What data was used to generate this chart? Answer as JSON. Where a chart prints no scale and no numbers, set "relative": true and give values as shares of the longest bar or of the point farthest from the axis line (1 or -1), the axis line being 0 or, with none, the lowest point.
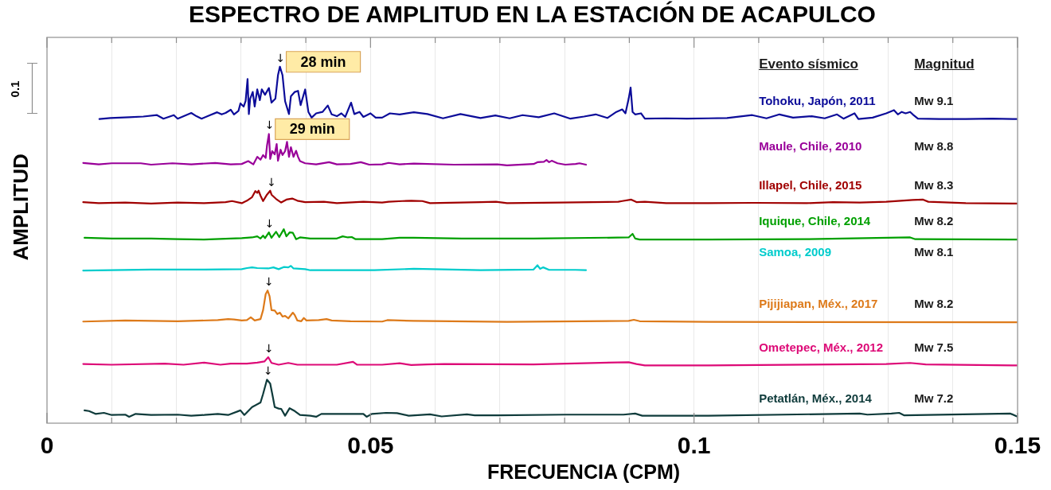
{
  "chart_data": {
    "type": "line",
    "relative": true,
    "title": "ESPECTRO DE AMPLITUD EN LA ESTACIÓN DE ACAPULCO",
    "xlabel": "FRECUENCIA (CPM)",
    "ylabel": "AMPLITUD",
    "xlim": [
      0,
      0.15
    ],
    "xticks": [
      0,
      {
        "value": 0.01,
        "label": null
      },
      {
        "value": 0.02,
        "label": null
      },
      {
        "value": 0.03,
        "label": null
      },
      {
        "value": 0.04,
        "label": null
      },
      0.05,
      {
        "value": 0.06,
        "label": null
      },
      {
        "value": 0.07,
        "label": null
      },
      {
        "value": 0.08,
        "label": null
      },
      {
        "value": 0.09,
        "label": null
      },
      0.1,
      {
        "value": 0.11,
        "label": null
      },
      {
        "value": 0.12,
        "label": null
      },
      {
        "value": 0.13,
        "label": null
      },
      {
        "value": 0.14,
        "label": null
      },
      0.15
    ],
    "grid": "x",
    "marker": "none",
    "line_style": "solid",
    "annotations": [
      "Evento sísmico",
      "Magnitud",
      "Mw 9.1",
      "Mw 8.8",
      "Mw 8.3",
      "Mw 8.2",
      "Mw 8.1",
      "Mw 8.2",
      "Mw 7.5",
      "Mw 7.2",
      "0.1",
      {
        "text": "↓",
        "x": 0.0361,
        "y": 1.0
      },
      {
        "text": "28 min",
        "x": 0.036,
        "y": 1.0
      },
      {
        "text": "↓",
        "x": 0.0344,
        "y": 0.811
      },
      {
        "text": "29 min",
        "x": 0.0343,
        "y": 0.811
      },
      {
        "text": "↓",
        "x": 0.0347,
        "y": 0.652
      },
      {
        "text": "↓",
        "x": 0.0344,
        "y": 0.535
      },
      {
        "text": "↓",
        "x": 0.0343,
        "y": 0.372
      },
      {
        "text": "↓",
        "x": 0.0343,
        "y": 0.185
      },
      {
        "text": "↓",
        "x": 0.0342,
        "y": 0.122
      }
    ],
    "series": [
      {
        "name": "Tohoku, Japón, 2011",
        "color": "#0c0c99",
        "x": [
          0.0081,
          0.0098,
          0.0127,
          0.0149,
          0.017,
          0.018,
          0.0196,
          0.0202,
          0.0223,
          0.0231,
          0.0239,
          0.0252,
          0.0263,
          0.027,
          0.0276,
          0.0284,
          0.0289,
          0.0296,
          0.0299,
          0.0304,
          0.0307,
          0.031,
          0.0312,
          0.0314,
          0.0318,
          0.0321,
          0.0325,
          0.0329,
          0.0332,
          0.0337,
          0.0343,
          0.0347,
          0.0353,
          0.0357,
          0.036,
          0.0364,
          0.0368,
          0.0374,
          0.0377,
          0.0383,
          0.0388,
          0.0392,
          0.0399,
          0.0404,
          0.0409,
          0.0416,
          0.0426,
          0.0434,
          0.044,
          0.0448,
          0.0455,
          0.0461,
          0.047,
          0.0475,
          0.0483,
          0.0489,
          0.05,
          0.0508,
          0.0518,
          0.053,
          0.0545,
          0.0567,
          0.0588,
          0.0612,
          0.0639,
          0.067,
          0.0693,
          0.0715,
          0.0735,
          0.076,
          0.0784,
          0.0809,
          0.083,
          0.0848,
          0.0866,
          0.088,
          0.0889,
          0.0894,
          0.0899,
          0.0902,
          0.0905,
          0.0909,
          0.0918,
          0.0924,
          0.0957,
          0.0989,
          0.1022,
          0.1051,
          0.109,
          0.1112,
          0.1132,
          0.1153,
          0.1182,
          0.1202,
          0.1221,
          0.1231,
          0.1248,
          0.1254,
          0.1276,
          0.1297,
          0.1309,
          0.1315,
          0.1321,
          0.1327,
          0.1334,
          0.1338,
          0.1346,
          0.1379,
          0.142,
          0.1461,
          0.1499
        ],
        "values": [
          0.853,
          0.856,
          0.858,
          0.86,
          0.864,
          0.854,
          0.864,
          0.854,
          0.87,
          0.861,
          0.854,
          0.864,
          0.872,
          0.866,
          0.87,
          0.879,
          0.866,
          0.876,
          0.897,
          0.888,
          0.904,
          0.965,
          0.867,
          0.91,
          0.929,
          0.888,
          0.936,
          0.906,
          0.936,
          0.921,
          0.94,
          0.899,
          0.91,
          0.976,
          1.0,
          0.976,
          0.903,
          0.867,
          0.917,
          0.929,
          0.932,
          0.892,
          0.936,
          0.873,
          0.857,
          0.869,
          0.873,
          0.891,
          0.866,
          0.861,
          0.869,
          0.859,
          0.899,
          0.867,
          0.873,
          0.859,
          0.869,
          0.857,
          0.857,
          0.869,
          0.866,
          0.872,
          0.867,
          0.855,
          0.867,
          0.856,
          0.863,
          0.855,
          0.864,
          0.858,
          0.869,
          0.854,
          0.86,
          0.866,
          0.856,
          0.873,
          0.88,
          0.869,
          0.91,
          0.941,
          0.873,
          0.866,
          0.869,
          0.854,
          0.855,
          0.854,
          0.855,
          0.856,
          0.864,
          0.855,
          0.866,
          0.857,
          0.861,
          0.855,
          0.866,
          0.854,
          0.869,
          0.853,
          0.857,
          0.869,
          0.878,
          0.866,
          0.873,
          0.869,
          0.873,
          0.866,
          0.854,
          0.853,
          0.853,
          0.854,
          0.853
        ]
      },
      {
        "name": "Maule, Chile, 2010",
        "color": "#990099",
        "x": [
          0.0056,
          0.008,
          0.01,
          0.0145,
          0.0161,
          0.0194,
          0.0223,
          0.026,
          0.0284,
          0.0301,
          0.0311,
          0.0319,
          0.0325,
          0.033,
          0.0334,
          0.0338,
          0.034,
          0.0343,
          0.0345,
          0.0348,
          0.0352,
          0.0355,
          0.0357,
          0.0361,
          0.0364,
          0.0368,
          0.0371,
          0.0374,
          0.0377,
          0.0381,
          0.0385,
          0.0388,
          0.0391,
          0.0399,
          0.0416,
          0.0436,
          0.0448,
          0.0469,
          0.0485,
          0.0498,
          0.0518,
          0.0528,
          0.0545,
          0.0567,
          0.0629,
          0.0696,
          0.0711,
          0.0752,
          0.0758,
          0.0768,
          0.0772,
          0.0776,
          0.078,
          0.0789,
          0.0801,
          0.0817,
          0.0823,
          0.0833
        ],
        "values": [
          0.73,
          0.726,
          0.729,
          0.729,
          0.725,
          0.729,
          0.726,
          0.73,
          0.726,
          0.727,
          0.735,
          0.726,
          0.747,
          0.739,
          0.752,
          0.744,
          0.778,
          0.811,
          0.741,
          0.763,
          0.754,
          0.783,
          0.736,
          0.767,
          0.752,
          0.763,
          0.789,
          0.747,
          0.774,
          0.747,
          0.764,
          0.747,
          0.735,
          0.729,
          0.726,
          0.732,
          0.726,
          0.727,
          0.732,
          0.725,
          0.726,
          0.73,
          0.726,
          0.728,
          0.725,
          0.726,
          0.723,
          0.727,
          0.732,
          0.733,
          0.738,
          0.732,
          0.736,
          0.729,
          0.725,
          0.727,
          0.729,
          0.725
        ]
      },
      {
        "name": "Illapel, Chile, 2015",
        "color": "#a00000",
        "x": [
          0.0056,
          0.008,
          0.0121,
          0.0161,
          0.0202,
          0.0243,
          0.0276,
          0.0286,
          0.0301,
          0.0309,
          0.0317,
          0.0322,
          0.0325,
          0.0327,
          0.033,
          0.0334,
          0.034,
          0.0345,
          0.0347,
          0.0354,
          0.0362,
          0.037,
          0.0379,
          0.0387,
          0.0399,
          0.0428,
          0.0448,
          0.0489,
          0.0518,
          0.0528,
          0.0549,
          0.0563,
          0.058,
          0.0592,
          0.067,
          0.0694,
          0.0711,
          0.0793,
          0.0883,
          0.0889,
          0.0903,
          0.0911,
          0.0924,
          0.0957,
          0.1022,
          0.1092,
          0.1174,
          0.1215,
          0.1256,
          0.1297,
          0.1338,
          0.1354,
          0.1362,
          0.1379,
          0.142,
          0.1499
        ],
        "values": [
          0.62,
          0.617,
          0.619,
          0.616,
          0.619,
          0.617,
          0.62,
          0.623,
          0.617,
          0.624,
          0.634,
          0.651,
          0.646,
          0.652,
          0.638,
          0.623,
          0.641,
          0.652,
          0.641,
          0.629,
          0.619,
          0.627,
          0.63,
          0.624,
          0.62,
          0.621,
          0.617,
          0.621,
          0.619,
          0.621,
          0.623,
          0.624,
          0.623,
          0.617,
          0.62,
          0.621,
          0.617,
          0.619,
          0.621,
          0.623,
          0.627,
          0.62,
          0.621,
          0.617,
          0.617,
          0.618,
          0.617,
          0.62,
          0.619,
          0.621,
          0.626,
          0.627,
          0.621,
          0.62,
          0.617,
          0.616
        ]
      },
      {
        "name": "Iquique, Chile, 2014",
        "color": "#00a000",
        "x": [
          0.0058,
          0.01,
          0.0161,
          0.0202,
          0.0243,
          0.0284,
          0.0301,
          0.0317,
          0.0325,
          0.033,
          0.0334,
          0.0337,
          0.0343,
          0.0347,
          0.0354,
          0.0359,
          0.0366,
          0.037,
          0.0375,
          0.038,
          0.0385,
          0.0391,
          0.0407,
          0.0448,
          0.0457,
          0.0465,
          0.0471,
          0.0477,
          0.0518,
          0.0545,
          0.0567,
          0.0641,
          0.0752,
          0.0899,
          0.0905,
          0.0909,
          0.0916,
          0.1022,
          0.1174,
          0.1334,
          0.1342,
          0.1499
        ],
        "values": [
          0.52,
          0.518,
          0.518,
          0.516,
          0.515,
          0.518,
          0.519,
          0.521,
          0.524,
          0.518,
          0.526,
          0.519,
          0.535,
          0.52,
          0.537,
          0.522,
          0.544,
          0.524,
          0.535,
          0.534,
          0.516,
          0.521,
          0.518,
          0.518,
          0.524,
          0.521,
          0.522,
          0.516,
          0.516,
          0.52,
          0.52,
          0.518,
          0.518,
          0.521,
          0.531,
          0.518,
          0.515,
          0.515,
          0.516,
          0.521,
          0.516,
          0.515
        ]
      },
      {
        "name": "Samoa, 2009",
        "color": "#00cccc",
        "x": [
          0.0056,
          0.0161,
          0.0243,
          0.0301,
          0.0309,
          0.0317,
          0.0325,
          0.0342,
          0.035,
          0.0358,
          0.0366,
          0.0373,
          0.0377,
          0.0381,
          0.0399,
          0.0407,
          0.0506,
          0.0567,
          0.067,
          0.0752,
          0.0758,
          0.0762,
          0.0767,
          0.0776,
          0.0817,
          0.0833
        ],
        "values": [
          0.428,
          0.431,
          0.431,
          0.432,
          0.435,
          0.437,
          0.435,
          0.434,
          0.437,
          0.432,
          0.438,
          0.437,
          0.441,
          0.434,
          0.432,
          0.429,
          0.429,
          0.433,
          0.429,
          0.431,
          0.443,
          0.433,
          0.437,
          0.43,
          0.43,
          0.429
        ]
      },
      {
        "name": "Pijijiapan, Méx., 2017",
        "color": "#dd7a1a",
        "x": [
          0.0056,
          0.0121,
          0.0202,
          0.0264,
          0.028,
          0.0289,
          0.0301,
          0.0309,
          0.0315,
          0.0321,
          0.033,
          0.0334,
          0.0338,
          0.0341,
          0.0344,
          0.0347,
          0.0352,
          0.0356,
          0.036,
          0.0364,
          0.0368,
          0.0373,
          0.038,
          0.0383,
          0.0387,
          0.0393,
          0.0397,
          0.0401,
          0.042,
          0.0432,
          0.044,
          0.0469,
          0.0518,
          0.0526,
          0.0567,
          0.0711,
          0.0899,
          0.0907,
          0.0916,
          0.1022,
          0.1499
        ],
        "values": [
          0.285,
          0.288,
          0.286,
          0.289,
          0.292,
          0.291,
          0.288,
          0.289,
          0.297,
          0.288,
          0.292,
          0.317,
          0.362,
          0.372,
          0.356,
          0.317,
          0.316,
          0.306,
          0.31,
          0.299,
          0.301,
          0.294,
          0.31,
          0.303,
          0.288,
          0.286,
          0.295,
          0.288,
          0.289,
          0.292,
          0.288,
          0.286,
          0.285,
          0.289,
          0.287,
          0.284,
          0.287,
          0.29,
          0.286,
          0.284,
          0.283
        ]
      },
      {
        "name": "Ometepec, Méx., 2012",
        "color": "#dd0a77",
        "x": [
          0.0056,
          0.01,
          0.0182,
          0.0211,
          0.0243,
          0.0268,
          0.0284,
          0.0309,
          0.0325,
          0.0336,
          0.0342,
          0.0347,
          0.0358,
          0.0373,
          0.0387,
          0.0407,
          0.0448,
          0.0473,
          0.0479,
          0.0518,
          0.0545,
          0.0563,
          0.0588,
          0.0614,
          0.0752,
          0.0899,
          0.0911,
          0.0924,
          0.1022,
          0.1297,
          0.1334,
          0.1358,
          0.1499
        ],
        "values": [
          0.166,
          0.164,
          0.167,
          0.164,
          0.17,
          0.164,
          0.167,
          0.167,
          0.17,
          0.173,
          0.185,
          0.169,
          0.164,
          0.169,
          0.164,
          0.164,
          0.164,
          0.172,
          0.164,
          0.164,
          0.168,
          0.163,
          0.165,
          0.166,
          0.165,
          0.171,
          0.166,
          0.162,
          0.162,
          0.166,
          0.169,
          0.165,
          0.162
        ]
      },
      {
        "name": "Petatlán, Méx., 2014",
        "color": "#0f3b3b",
        "x": [
          0.0058,
          0.0065,
          0.0075,
          0.0088,
          0.01,
          0.0121,
          0.0127,
          0.0137,
          0.0161,
          0.0202,
          0.0223,
          0.0243,
          0.0264,
          0.028,
          0.0299,
          0.0305,
          0.0317,
          0.033,
          0.0334,
          0.034,
          0.0345,
          0.0349,
          0.0352,
          0.0358,
          0.0362,
          0.0368,
          0.0375,
          0.0383,
          0.0391,
          0.0407,
          0.0416,
          0.0424,
          0.0448,
          0.0489,
          0.0494,
          0.0502,
          0.0524,
          0.0541,
          0.0559,
          0.0592,
          0.061,
          0.0649,
          0.0661,
          0.0698,
          0.0801,
          0.0891,
          0.0909,
          0.092,
          0.1022,
          0.1256,
          0.1268,
          0.1305,
          0.1317,
          0.1325,
          0.1489,
          0.1499
        ],
        "values": [
          0.036,
          0.034,
          0.026,
          0.029,
          0.023,
          0.024,
          0.018,
          0.026,
          0.023,
          0.024,
          0.021,
          0.023,
          0.026,
          0.023,
          0.036,
          0.023,
          0.045,
          0.058,
          0.082,
          0.122,
          0.111,
          0.074,
          0.045,
          0.041,
          0.04,
          0.021,
          0.042,
          0.034,
          0.023,
          0.021,
          0.018,
          0.026,
          0.026,
          0.026,
          0.018,
          0.026,
          0.029,
          0.028,
          0.021,
          0.025,
          0.019,
          0.025,
          0.022,
          0.022,
          0.024,
          0.024,
          0.027,
          0.021,
          0.021,
          0.027,
          0.024,
          0.027,
          0.029,
          0.022,
          0.027,
          0.019
        ]
      }
    ]
  }
}
